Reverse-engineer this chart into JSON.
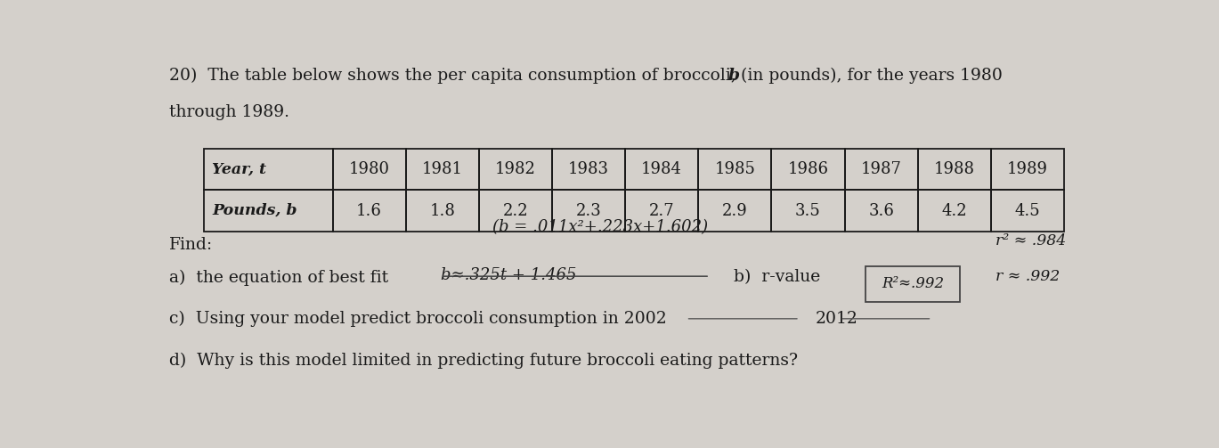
{
  "title_line1": "20)  The table below shows the per capita consumption of broccoli, ",
  "title_bold": "b",
  "title_line1_end": " (in pounds), for the years 1980",
  "title_line2": "through 1989.",
  "years": [
    "Year, t",
    "1980",
    "1981",
    "1982",
    "1983",
    "1984",
    "1985",
    "1986",
    "1987",
    "1988",
    "1989"
  ],
  "pounds": [
    "Pounds, b",
    "1.6",
    "1.8",
    "2.2",
    "2.3",
    "2.7",
    "2.9",
    "3.5",
    "3.6",
    "4.2",
    "4.5"
  ],
  "find_label": "Find:",
  "part_a_label": "a)  the equation of best fit",
  "part_a_handwritten": "(b = .011x²+.223x+1.602)",
  "part_a_answer": "b≈.325t + 1.465",
  "part_b_label": "b)  r-value",
  "part_b_answer_box": "R²≈.992",
  "part_b_r2": "r² ≈ .984",
  "part_b_r": "r ≈ .992",
  "part_c_label": "c)  Using your model predict broccoli consumption in 2002",
  "part_c_2012": "2012",
  "part_d_label": "d)  Why is this model limited in predicting future broccoli eating patterns?",
  "bg_color": "#d4d0cb",
  "text_color": "#1a1a1a",
  "table_border_color": "#1a1a1a"
}
